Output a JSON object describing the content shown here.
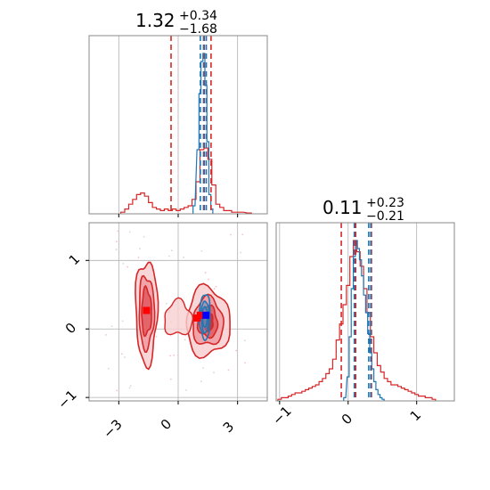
{
  "colors": {
    "red": "#d62728",
    "blue": "#1f77b4",
    "grid": "#b0b0b0",
    "marker_red": "#ff0000",
    "marker_blue": "#0000ff"
  },
  "chart_data": {
    "type": "corner",
    "grid": true,
    "parameters": [
      {
        "title_value": "1.32",
        "title_plus": "+0.34",
        "title_minus": "−1.68",
        "range": [
          -4.5,
          4.5
        ],
        "ticks": [
          -3,
          0,
          3
        ],
        "tick_labels": [
          "−3",
          "0",
          "3"
        ]
      },
      {
        "title_value": "0.11",
        "title_plus": "+0.23",
        "title_minus": "−0.21",
        "range": [
          -1.05,
          1.55
        ],
        "ticks": [
          -1,
          0,
          1
        ],
        "tick_labels": [
          "−1",
          "0",
          "1"
        ]
      }
    ],
    "hist1": {
      "red_bins": [
        [
          -2.8,
          0.01
        ],
        [
          -2.6,
          0.03
        ],
        [
          -2.4,
          0.06
        ],
        [
          -2.2,
          0.09
        ],
        [
          -2.0,
          0.12
        ],
        [
          -1.8,
          0.13
        ],
        [
          -1.6,
          0.11
        ],
        [
          -1.4,
          0.07
        ],
        [
          -1.2,
          0.04
        ],
        [
          -1.0,
          0.03
        ],
        [
          -0.8,
          0.02
        ],
        [
          -0.6,
          0.03
        ],
        [
          -0.4,
          0.02
        ],
        [
          -0.2,
          0.03
        ],
        [
          0.0,
          0.02
        ],
        [
          0.2,
          0.03
        ],
        [
          0.4,
          0.04
        ],
        [
          0.6,
          0.05
        ],
        [
          0.8,
          0.09
        ],
        [
          1.0,
          0.2
        ],
        [
          1.2,
          0.4
        ],
        [
          1.4,
          0.41
        ],
        [
          1.6,
          0.34
        ],
        [
          1.8,
          0.18
        ],
        [
          2.0,
          0.06
        ],
        [
          2.2,
          0.04
        ],
        [
          2.4,
          0.02
        ],
        [
          2.6,
          0.02
        ],
        [
          2.8,
          0.01
        ],
        [
          3.2,
          0.01
        ],
        [
          3.6,
          0.005
        ]
      ],
      "blue_bins": [
        [
          0.8,
          0.05
        ],
        [
          1.0,
          0.4
        ],
        [
          1.1,
          0.75
        ],
        [
          1.2,
          0.95
        ],
        [
          1.3,
          1.0
        ],
        [
          1.4,
          0.8
        ],
        [
          1.5,
          0.45
        ],
        [
          1.6,
          0.12
        ],
        [
          1.7,
          0.03
        ]
      ],
      "bin_width_red": 0.2,
      "bin_width_blue": 0.1,
      "red_lines": [
        -0.36,
        1.32,
        1.66
      ],
      "blue_lines": [
        1.12,
        1.28,
        1.42
      ]
    },
    "hist2": {
      "red_bins": [
        [
          -1.0,
          0.01
        ],
        [
          -0.95,
          0.02
        ],
        [
          -0.9,
          0.02
        ],
        [
          -0.85,
          0.03
        ],
        [
          -0.8,
          0.04
        ],
        [
          -0.75,
          0.05
        ],
        [
          -0.7,
          0.05
        ],
        [
          -0.65,
          0.06
        ],
        [
          -0.6,
          0.07
        ],
        [
          -0.55,
          0.08
        ],
        [
          -0.5,
          0.09
        ],
        [
          -0.45,
          0.1
        ],
        [
          -0.4,
          0.12
        ],
        [
          -0.35,
          0.14
        ],
        [
          -0.3,
          0.17
        ],
        [
          -0.25,
          0.2
        ],
        [
          -0.2,
          0.26
        ],
        [
          -0.15,
          0.38
        ],
        [
          -0.1,
          0.48
        ],
        [
          -0.05,
          0.6
        ],
        [
          0.0,
          0.72
        ],
        [
          0.05,
          0.9
        ],
        [
          0.1,
          1.0
        ],
        [
          0.15,
          0.93
        ],
        [
          0.2,
          0.84
        ],
        [
          0.25,
          0.7
        ],
        [
          0.3,
          0.55
        ],
        [
          0.35,
          0.4
        ],
        [
          0.4,
          0.3
        ],
        [
          0.45,
          0.22
        ],
        [
          0.5,
          0.18
        ],
        [
          0.55,
          0.14
        ],
        [
          0.6,
          0.12
        ],
        [
          0.65,
          0.1
        ],
        [
          0.7,
          0.1
        ],
        [
          0.75,
          0.09
        ],
        [
          0.8,
          0.08
        ],
        [
          0.85,
          0.07
        ],
        [
          0.9,
          0.06
        ],
        [
          0.95,
          0.05
        ],
        [
          1.0,
          0.04
        ],
        [
          1.05,
          0.03
        ],
        [
          1.1,
          0.03
        ],
        [
          1.15,
          0.02
        ],
        [
          1.2,
          0.02
        ],
        [
          1.25,
          0.01
        ]
      ],
      "blue_bins": [
        [
          -0.05,
          0.02
        ],
        [
          0.0,
          0.15
        ],
        [
          0.03,
          0.4
        ],
        [
          0.06,
          0.7
        ],
        [
          0.09,
          0.9
        ],
        [
          0.12,
          1.0
        ],
        [
          0.15,
          0.95
        ],
        [
          0.18,
          0.88
        ],
        [
          0.21,
          0.78
        ],
        [
          0.24,
          0.66
        ],
        [
          0.27,
          0.55
        ],
        [
          0.3,
          0.42
        ],
        [
          0.33,
          0.3
        ],
        [
          0.36,
          0.2
        ],
        [
          0.39,
          0.12
        ],
        [
          0.42,
          0.07
        ],
        [
          0.45,
          0.04
        ],
        [
          0.48,
          0.02
        ],
        [
          0.51,
          0.01
        ]
      ],
      "bin_width_red": 0.05,
      "bin_width_blue": 0.03,
      "red_lines": [
        -0.1,
        0.11,
        0.34
      ],
      "blue_lines": [
        0.09,
        0.3,
        0.33
      ]
    },
    "joint": {
      "red_marker": [
        1.12,
        0.2
      ],
      "red_markers_extra": [
        [
          -1.6,
          0.27
        ],
        [
          0.95,
          0.16
        ]
      ],
      "blue_marker": [
        1.4,
        0.2
      ],
      "red_clusters": [
        {
          "cx": -1.6,
          "cy": 0.25,
          "rx": 0.55,
          "ry": 0.75,
          "levels": [
            1.0,
            0.7,
            0.45
          ]
        },
        {
          "cx": 1.5,
          "cy": 0.1,
          "rx": 1.1,
          "ry": 0.5,
          "levels": [
            1.0,
            0.7,
            0.45,
            0.25
          ]
        }
      ],
      "blue_cluster": {
        "cx": 1.35,
        "cy": 0.18,
        "rx": 0.28,
        "ry": 0.33
      }
    }
  }
}
